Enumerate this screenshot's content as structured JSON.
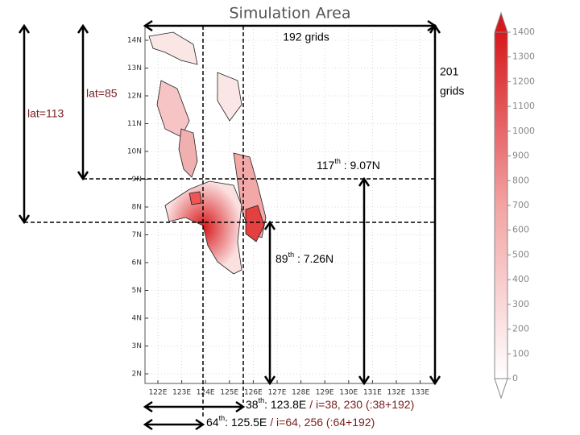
{
  "map": {
    "title": "Simulation Area",
    "lat_labels": [
      "14N",
      "13N",
      "12N",
      "11N",
      "10N",
      "9N",
      "8N",
      "7N",
      "6N",
      "5N",
      "4N",
      "3N",
      "2N"
    ],
    "lon_labels": [
      "122E",
      "123E",
      "124E",
      "125E",
      "126E",
      "127E",
      "128E",
      "129E",
      "130E",
      "131E",
      "132E",
      "133E"
    ]
  },
  "colorbar": {
    "ticks": [
      0,
      100,
      200,
      300,
      400,
      500,
      600,
      700,
      800,
      900,
      1000,
      1100,
      1200,
      1300,
      1400
    ]
  },
  "annotations": {
    "width_grids": "192 grids",
    "height_grids": [
      "201",
      "grids"
    ],
    "lat_85": "lat=85",
    "lat_113": "lat=113",
    "row_117": {
      "ordinal": "117",
      "suffix": "th",
      "rest": " : 9.07N"
    },
    "row_89": {
      "ordinal": "89",
      "suffix": "th",
      "rest": " : 7.26N"
    },
    "col_38": {
      "ordinal": "38",
      "suffix": "th",
      "rest": ": 123.8E",
      "index": "/ i=38, 230 (:38+192)"
    },
    "col_64": {
      "ordinal": "64",
      "suffix": "th",
      "rest": ": 125.5E",
      "index": "/ i=64, 256 (:64+192)"
    }
  }
}
